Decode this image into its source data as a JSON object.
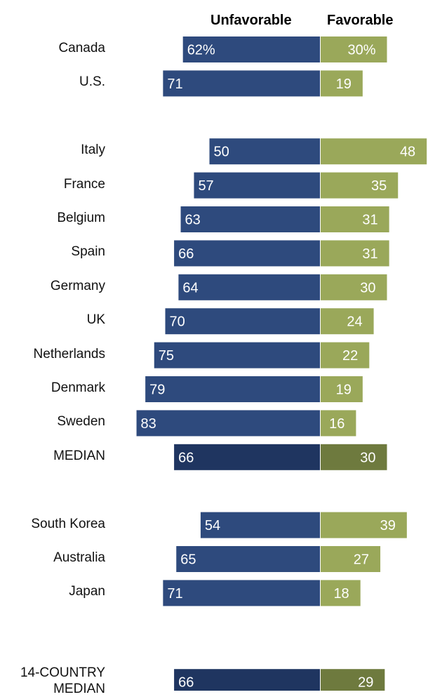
{
  "chart_data": {
    "type": "bar",
    "subtype": "diverging-horizontal",
    "headers": {
      "unfavorable": "Unfavorable",
      "favorable": "Favorable"
    },
    "colors": {
      "unfavorable": "#2e4a7d",
      "favorable": "#9aa85a",
      "unfavorable_median": "#1f3560",
      "favorable_median": "#6e7a3e"
    },
    "groups": [
      {
        "rows": [
          {
            "label": "Canada",
            "unfavorable": 62,
            "favorable": 30,
            "unfavorable_text": "62%",
            "favorable_text": "30%",
            "median": false
          },
          {
            "label": "U.S.",
            "unfavorable": 71,
            "favorable": 19,
            "unfavorable_text": "71",
            "favorable_text": "19",
            "median": false
          }
        ]
      },
      {
        "rows": [
          {
            "label": "Italy",
            "unfavorable": 50,
            "favorable": 48,
            "unfavorable_text": "50",
            "favorable_text": "48",
            "median": false
          },
          {
            "label": "France",
            "unfavorable": 57,
            "favorable": 35,
            "unfavorable_text": "57",
            "favorable_text": "35",
            "median": false
          },
          {
            "label": "Belgium",
            "unfavorable": 63,
            "favorable": 31,
            "unfavorable_text": "63",
            "favorable_text": "31",
            "median": false
          },
          {
            "label": "Spain",
            "unfavorable": 66,
            "favorable": 31,
            "unfavorable_text": "66",
            "favorable_text": "31",
            "median": false
          },
          {
            "label": "Germany",
            "unfavorable": 64,
            "favorable": 30,
            "unfavorable_text": "64",
            "favorable_text": "30",
            "median": false
          },
          {
            "label": "UK",
            "unfavorable": 70,
            "favorable": 24,
            "unfavorable_text": "70",
            "favorable_text": "24",
            "median": false
          },
          {
            "label": "Netherlands",
            "unfavorable": 75,
            "favorable": 22,
            "unfavorable_text": "75",
            "favorable_text": "22",
            "median": false
          },
          {
            "label": "Denmark",
            "unfavorable": 79,
            "favorable": 19,
            "unfavorable_text": "79",
            "favorable_text": "19",
            "median": false
          },
          {
            "label": "Sweden",
            "unfavorable": 83,
            "favorable": 16,
            "unfavorable_text": "83",
            "favorable_text": "16",
            "median": false
          },
          {
            "label": "MEDIAN",
            "unfavorable": 66,
            "favorable": 30,
            "unfavorable_text": "66",
            "favorable_text": "30",
            "median": true
          }
        ]
      },
      {
        "rows": [
          {
            "label": "South Korea",
            "unfavorable": 54,
            "favorable": 39,
            "unfavorable_text": "54",
            "favorable_text": "39",
            "median": false
          },
          {
            "label": "Australia",
            "unfavorable": 65,
            "favorable": 27,
            "unfavorable_text": "65",
            "favorable_text": "27",
            "median": false
          },
          {
            "label": "Japan",
            "unfavorable": 71,
            "favorable": 18,
            "unfavorable_text": "71",
            "favorable_text": "18",
            "median": false
          }
        ]
      },
      {
        "rows": [
          {
            "label": "14-COUNTRY\nMEDIAN",
            "unfavorable": 66,
            "favorable": 29,
            "unfavorable_text": "66",
            "favorable_text": "29",
            "median": true
          }
        ]
      }
    ]
  }
}
